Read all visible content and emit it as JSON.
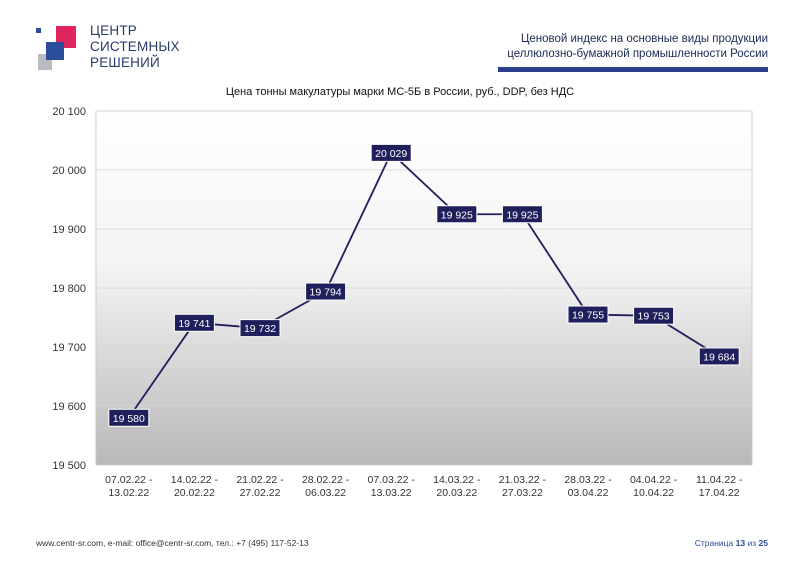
{
  "logo": {
    "line1": "ЦЕНТР",
    "line2": "СИСТЕМНЫХ",
    "line3": "РЕШЕНИЙ"
  },
  "header": {
    "line1": "Ценовой индекс на основные виды продукции",
    "line2": "целлюлозно-бумажной промышленности России"
  },
  "chart_data": {
    "type": "line",
    "title": "Цена тонны макулатуры марки МС-5Б в России, руб., DDP, без НДС",
    "categories": [
      [
        "07.02.22 -",
        "13.02.22"
      ],
      [
        "14.02.22 -",
        "20.02.22"
      ],
      [
        "21.02.22 -",
        "27.02.22"
      ],
      [
        "28.02.22 -",
        "06.03.22"
      ],
      [
        "07.03.22 -",
        "13.03.22"
      ],
      [
        "14.03.22 -",
        "20.03.22"
      ],
      [
        "21.03.22 -",
        "27.03.22"
      ],
      [
        "28.03.22 -",
        "03.04.22"
      ],
      [
        "04.04.22 -",
        "10.04.22"
      ],
      [
        "11.04.22 -",
        "17.04.22"
      ]
    ],
    "values": [
      19580,
      19741,
      19732,
      19794,
      20029,
      19925,
      19925,
      19755,
      19753,
      19684
    ],
    "value_labels": [
      "19 580",
      "19 741",
      "19 732",
      "19 794",
      "20 029",
      "19 925",
      "19 925",
      "19 755",
      "19 753",
      "19 684"
    ],
    "ylim": [
      19500,
      20100
    ],
    "yticks": [
      19500,
      19600,
      19700,
      19800,
      19900,
      20000,
      20100
    ],
    "ytick_labels": [
      "19 500",
      "19 600",
      "19 700",
      "19 800",
      "19 900",
      "20 000",
      "20 100"
    ],
    "grid": true,
    "line_color": "#1f1f5c",
    "label_bg": "#1f1f5c"
  },
  "footer": {
    "contacts": "www.centr-sr.com, e-mail: office@centr-sr.com, тел.: +7 (495) 117-52-13",
    "page_word": "Страница",
    "page_num": "13",
    "of_word": "из",
    "page_total": "25"
  }
}
